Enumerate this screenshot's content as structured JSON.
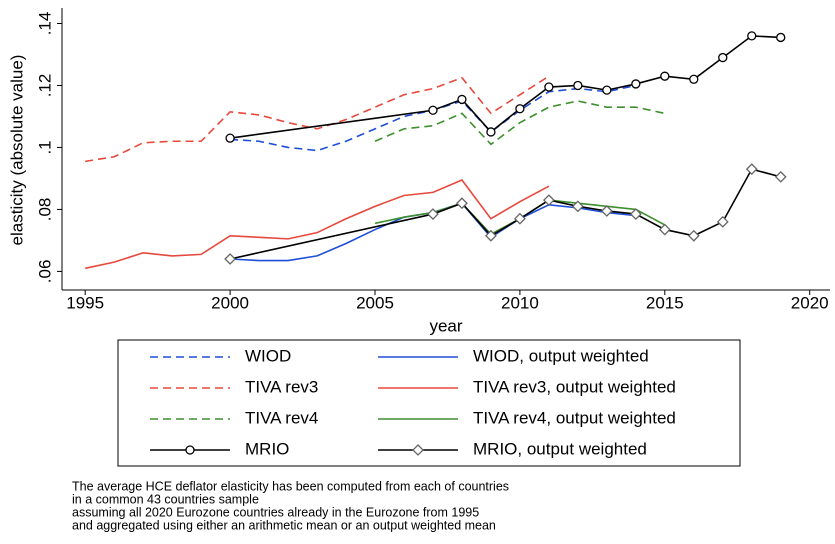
{
  "chart_data": {
    "type": "line",
    "xlabel": "year",
    "ylabel": "elasticity (absolute value)",
    "xlim": [
      1994.2,
      2020.7
    ],
    "xticks": [
      1995,
      2000,
      2005,
      2010,
      2015,
      2020
    ],
    "ylim": [
      0.054,
      0.145
    ],
    "yticks": [
      {
        "value": 0.06,
        "label": ".06"
      },
      {
        "value": 0.08,
        "label": ".08"
      },
      {
        "value": 0.1,
        "label": ".1"
      },
      {
        "value": 0.12,
        "label": ".12"
      },
      {
        "value": 0.14,
        "label": ".14"
      }
    ],
    "series": [
      {
        "name": "WIOD",
        "color": "#1f4fd8",
        "dash": true,
        "x": [
          2000,
          2001,
          2002,
          2003,
          2004,
          2005,
          2006,
          2007,
          2008,
          2009,
          2010,
          2011,
          2012,
          2013,
          2014
        ],
        "values": [
          0.1026,
          0.102,
          0.1,
          0.099,
          0.102,
          0.106,
          0.11,
          0.112,
          0.115,
          0.105,
          0.112,
          0.118,
          0.119,
          0.118,
          0.12
        ]
      },
      {
        "name": "WIOD, output weighted",
        "color": "#1f4fd8",
        "x": [
          2000,
          2001,
          2002,
          2003,
          2004,
          2005,
          2006,
          2007,
          2008,
          2009,
          2010,
          2011,
          2012,
          2013,
          2014
        ],
        "values": [
          0.064,
          0.0635,
          0.0635,
          0.065,
          0.069,
          0.0735,
          0.0775,
          0.079,
          0.082,
          0.071,
          0.077,
          0.0815,
          0.0805,
          0.079,
          0.078
        ]
      },
      {
        "name": "TIVA rev3",
        "color": "#e8483c",
        "dash": true,
        "x": [
          1995,
          1996,
          1997,
          1998,
          1999,
          2000,
          2001,
          2002,
          2003,
          2004,
          2005,
          2006,
          2007,
          2008,
          2009,
          2010,
          2011
        ],
        "values": [
          0.0955,
          0.097,
          0.1015,
          0.102,
          0.102,
          0.1115,
          0.1105,
          0.108,
          0.106,
          0.109,
          0.113,
          0.117,
          0.119,
          0.1225,
          0.111,
          0.117,
          0.123
        ]
      },
      {
        "name": "TIVA rev3, output weighted",
        "color": "#e8483c",
        "x": [
          1995,
          1996,
          1997,
          1998,
          1999,
          2000,
          2001,
          2002,
          2003,
          2004,
          2005,
          2006,
          2007,
          2008,
          2009,
          2010,
          2011
        ],
        "values": [
          0.061,
          0.063,
          0.066,
          0.065,
          0.0655,
          0.0715,
          0.071,
          0.0705,
          0.0725,
          0.077,
          0.081,
          0.0845,
          0.0855,
          0.0895,
          0.077,
          0.0825,
          0.0875
        ]
      },
      {
        "name": "TIVA rev4",
        "color": "#3e8f2e",
        "dash": true,
        "x": [
          2005,
          2006,
          2007,
          2008,
          2009,
          2010,
          2011,
          2012,
          2013,
          2014,
          2015
        ],
        "values": [
          0.102,
          0.106,
          0.107,
          0.111,
          0.101,
          0.108,
          0.113,
          0.115,
          0.113,
          0.113,
          0.111
        ]
      },
      {
        "name": "TIVA rev4, output weighted",
        "color": "#3e8f2e",
        "x": [
          2005,
          2006,
          2007,
          2008,
          2009,
          2010,
          2011,
          2012,
          2013,
          2014,
          2015
        ],
        "values": [
          0.0755,
          0.0775,
          0.079,
          0.082,
          0.072,
          0.077,
          0.083,
          0.082,
          0.081,
          0.08,
          0.075
        ]
      },
      {
        "name": "MRIO",
        "color": "#000000",
        "marker": "circle",
        "x": [
          2000,
          2007,
          2008,
          2009,
          2010,
          2011,
          2012,
          2013,
          2014,
          2015,
          2016,
          2017,
          2018,
          2019
        ],
        "values": [
          0.103,
          0.112,
          0.1155,
          0.105,
          0.1125,
          0.1195,
          0.12,
          0.1185,
          0.1205,
          0.123,
          0.122,
          0.129,
          0.136,
          0.1355
        ]
      },
      {
        "name": "MRIO, output weighted",
        "color": "#000000",
        "marker": "diamond",
        "x": [
          2000,
          2007,
          2008,
          2009,
          2010,
          2011,
          2012,
          2013,
          2014,
          2015,
          2016,
          2017,
          2018,
          2019
        ],
        "values": [
          0.064,
          0.0785,
          0.082,
          0.0715,
          0.077,
          0.083,
          0.081,
          0.0795,
          0.0785,
          0.0735,
          0.0715,
          0.076,
          0.093,
          0.0905
        ]
      }
    ],
    "note": [
      "The average HCE deflator elasticity has been computed from each of countries",
      "in a common 43 countries sample",
      "assuming all 2020 Eurozone countries already in the Eurozone from 1995",
      "and aggregated using either an arithmetic mean or an output weighted mean"
    ]
  }
}
